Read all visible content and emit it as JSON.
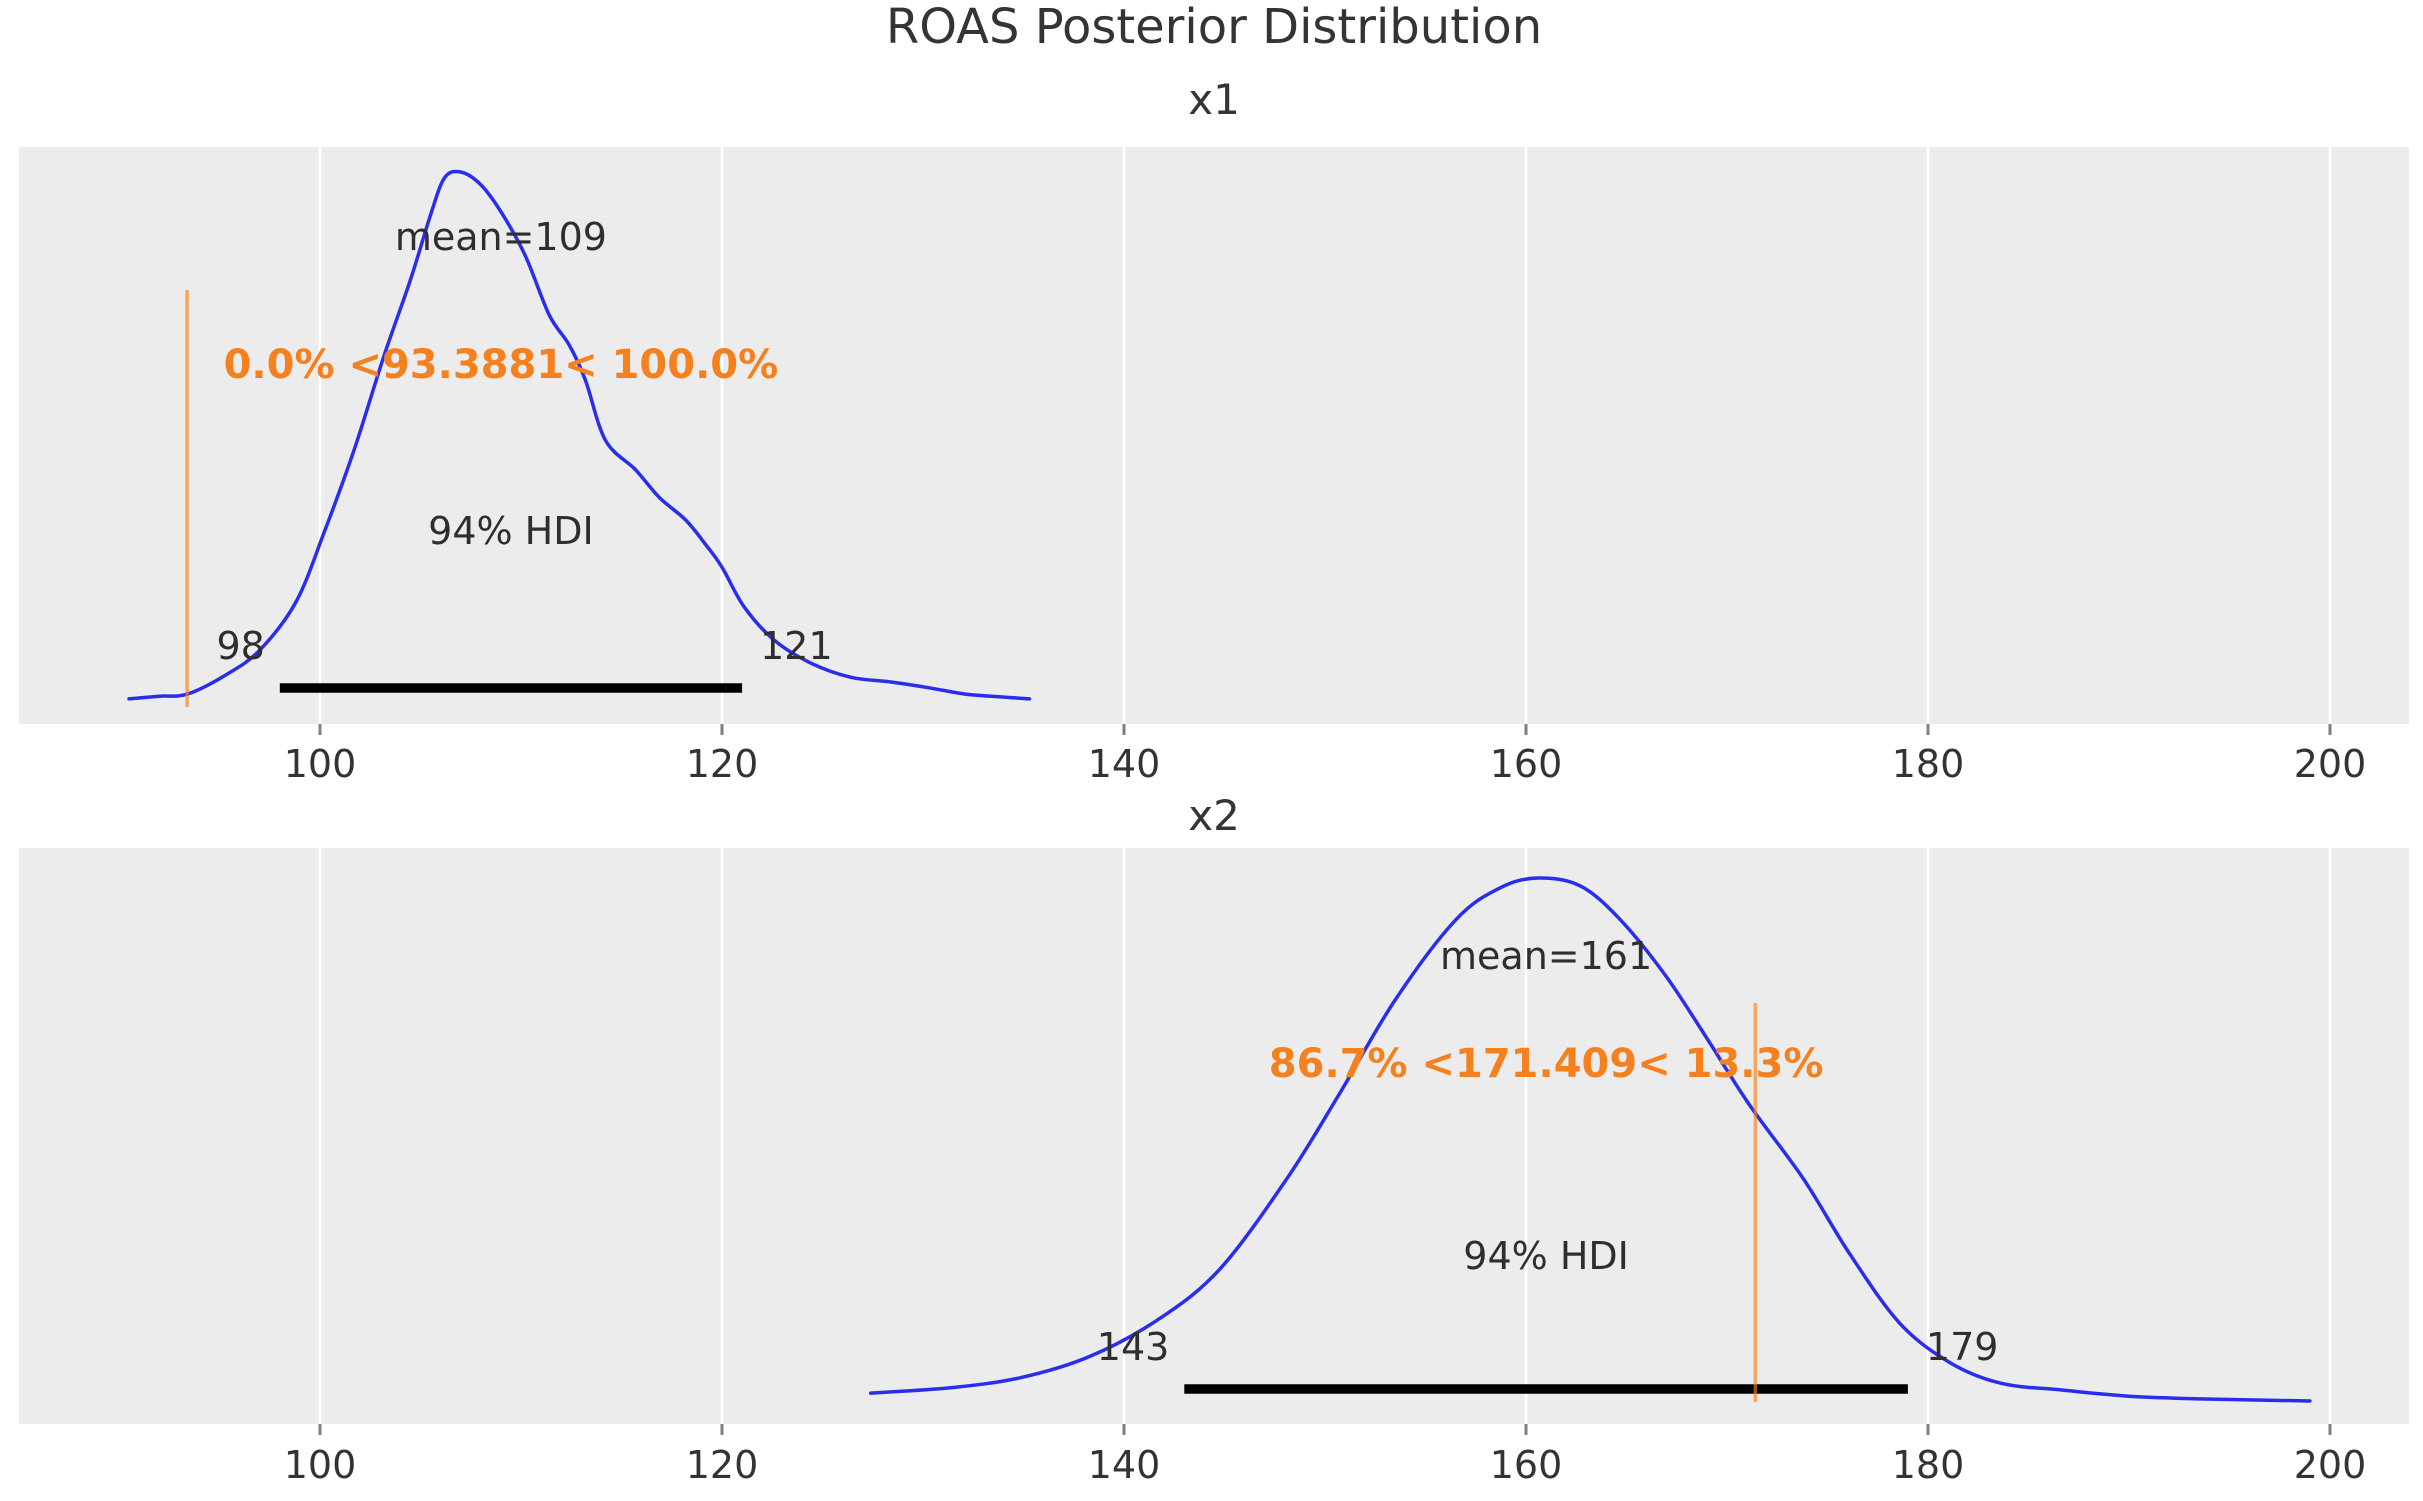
{
  "chart_data": {
    "type": "kde",
    "title": "ROAS Posterior Distribution",
    "x_tick_values": [
      100,
      120,
      140,
      160,
      180,
      200
    ],
    "colors": {
      "panel_background": "#ececec",
      "gridline": "#ffffff",
      "curve": "#2a2eec",
      "reference": "#f5811e",
      "hdi_bar": "#000000",
      "text": "#2e2e2e"
    },
    "subplots": [
      {
        "title": "x1",
        "mean": 109,
        "mean_label": "mean=109",
        "hdi_label": "94% HDI",
        "hdi_lower": 98,
        "hdi_upper": 121,
        "hdi_lower_label": "98",
        "hdi_upper_label": "121",
        "ref_val": 93.3881,
        "ref_label": "0.0% <93.3881< 100.0%",
        "curve": [
          [
            90.5,
            0.004
          ],
          [
            92.0,
            0.009
          ],
          [
            93.4,
            0.013
          ],
          [
            95.3,
            0.049
          ],
          [
            97.0,
            0.096
          ],
          [
            98.8,
            0.187
          ],
          [
            100.2,
            0.318
          ],
          [
            101.7,
            0.475
          ],
          [
            103.2,
            0.654
          ],
          [
            104.5,
            0.796
          ],
          [
            105.5,
            0.919
          ],
          [
            106.2,
            0.989
          ],
          [
            107.0,
            1.0
          ],
          [
            108.0,
            0.976
          ],
          [
            109.0,
            0.925
          ],
          [
            110.2,
            0.843
          ],
          [
            111.4,
            0.73
          ],
          [
            112.4,
            0.673
          ],
          [
            113.2,
            0.607
          ],
          [
            114.2,
            0.493
          ],
          [
            115.7,
            0.437
          ],
          [
            116.9,
            0.384
          ],
          [
            118.2,
            0.342
          ],
          [
            119.2,
            0.295
          ],
          [
            120.0,
            0.253
          ],
          [
            121.1,
            0.178
          ],
          [
            122.6,
            0.115
          ],
          [
            124.4,
            0.072
          ],
          [
            126.4,
            0.045
          ],
          [
            128.4,
            0.036
          ],
          [
            130.3,
            0.025
          ],
          [
            132.1,
            0.013
          ],
          [
            133.8,
            0.008
          ],
          [
            135.3,
            0.004
          ]
        ]
      },
      {
        "title": "x2",
        "mean": 161,
        "mean_label": "mean=161",
        "hdi_label": "94% HDI",
        "hdi_lower": 143,
        "hdi_upper": 179,
        "hdi_lower_label": "143",
        "hdi_upper_label": "179",
        "ref_val": 171.409,
        "ref_label": "86.7% <171.409< 13.3%",
        "curve": [
          [
            127.4,
            0.017
          ],
          [
            131.3,
            0.027
          ],
          [
            134.8,
            0.046
          ],
          [
            138.3,
            0.087
          ],
          [
            141.8,
            0.16
          ],
          [
            144.8,
            0.255
          ],
          [
            148.1,
            0.426
          ],
          [
            150.7,
            0.587
          ],
          [
            153.5,
            0.768
          ],
          [
            156.5,
            0.92
          ],
          [
            158.7,
            0.981
          ],
          [
            160.6,
            1.0
          ],
          [
            162.7,
            0.985
          ],
          [
            164.7,
            0.92
          ],
          [
            166.9,
            0.816
          ],
          [
            168.9,
            0.7
          ],
          [
            171.1,
            0.568
          ],
          [
            173.8,
            0.426
          ],
          [
            176.1,
            0.283
          ],
          [
            178.6,
            0.15
          ],
          [
            181.1,
            0.075
          ],
          [
            183.6,
            0.036
          ],
          [
            186.6,
            0.023
          ],
          [
            190.0,
            0.011
          ],
          [
            193.5,
            0.006
          ],
          [
            199.0,
            0.002
          ]
        ]
      }
    ]
  }
}
